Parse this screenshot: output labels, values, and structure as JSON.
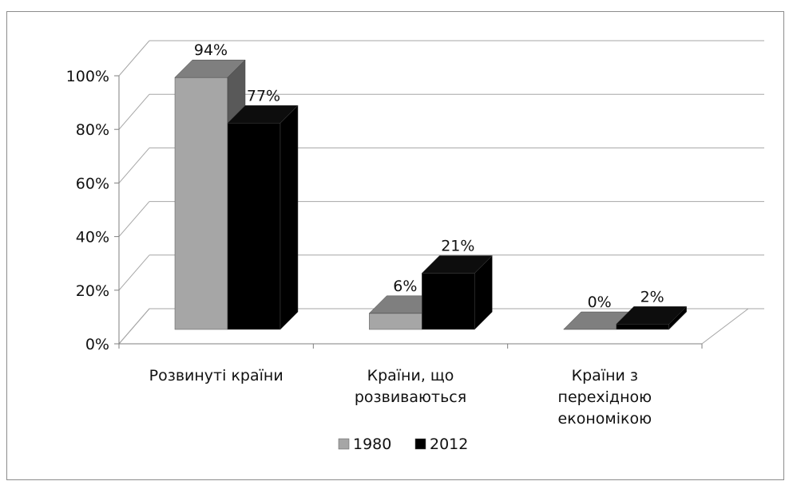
{
  "chart_data": {
    "type": "bar",
    "title": "",
    "xlabel": "",
    "ylabel": "",
    "ylim": [
      0,
      100
    ],
    "y_ticks": [
      "0%",
      "20%",
      "40%",
      "60%",
      "80%",
      "100%"
    ],
    "categories": [
      [
        "Розвинуті країни"
      ],
      [
        "Країни, що",
        "розвиваються"
      ],
      [
        "Країни з",
        "перехідною",
        "економікою"
      ]
    ],
    "series": [
      {
        "name": "1980",
        "values": [
          94,
          6,
          0
        ],
        "labels": [
          "94%",
          "6%",
          "0%"
        ],
        "color": "#a6a6a6",
        "top_color": "#7f7f7f",
        "side_color": "#595959"
      },
      {
        "name": "2012",
        "values": [
          77,
          21,
          2
        ],
        "labels": [
          "77%",
          "21%",
          "2%"
        ],
        "color": "#000000",
        "top_color": "#0d0d0d",
        "side_color": "#000000"
      }
    ],
    "style": "3d-clustered-column",
    "grid": true,
    "legend_position": "bottom"
  }
}
